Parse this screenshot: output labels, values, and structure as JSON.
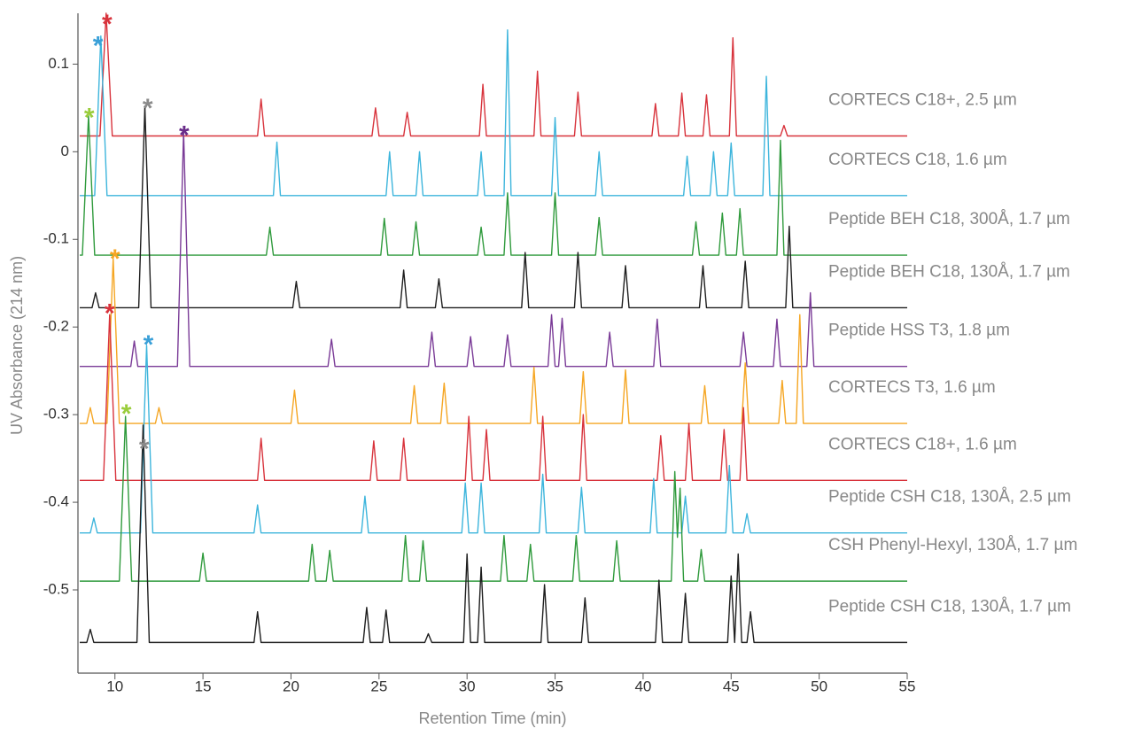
{
  "chart_data": {
    "type": "line",
    "x_label": "Retention Time (min)",
    "y_label": "UV Absorbance (214 nm)",
    "xlim": [
      7.9,
      55
    ],
    "ylim": [
      -0.595,
      0.158
    ],
    "xticks": [
      10,
      15,
      20,
      25,
      30,
      35,
      40,
      45,
      50,
      55
    ],
    "yticks": [
      0.1,
      0,
      -0.1,
      -0.2,
      -0.3,
      -0.4,
      -0.5
    ],
    "series": [
      {
        "name": "CORTECS C18+, 2.5 µm",
        "color": "#d8333c",
        "x": [
          8,
          9.15,
          9.5,
          9.85,
          18.1,
          18.3,
          18.5,
          24.6,
          24.8,
          25,
          26.4,
          26.6,
          26.8,
          30.7,
          30.9,
          31.1,
          33.8,
          34,
          34.2,
          36.1,
          36.3,
          36.5,
          40.5,
          40.7,
          40.9,
          42,
          42.2,
          42.4,
          43.4,
          43.6,
          43.8,
          44.9,
          45.1,
          45.3,
          47.8,
          48,
          48.2,
          55
        ],
        "values": [
          0.018,
          0.018,
          0.158,
          0.018,
          0.018,
          0.06,
          0.018,
          0.018,
          0.05,
          0.018,
          0.018,
          0.045,
          0.018,
          0.018,
          0.077,
          0.018,
          0.018,
          0.092,
          0.018,
          0.018,
          0.068,
          0.018,
          0.018,
          0.055,
          0.018,
          0.018,
          0.067,
          0.018,
          0.018,
          0.065,
          0.018,
          0.018,
          0.13,
          0.018,
          0.018,
          0.03,
          0.018,
          0.018
        ]
      },
      {
        "name": "CORTECS C18, 1.6 µm",
        "color": "#3db5dc",
        "x": [
          8,
          8.85,
          9.2,
          9.55,
          19,
          19.2,
          19.4,
          25.4,
          25.6,
          25.8,
          27.1,
          27.3,
          27.5,
          30.6,
          30.8,
          31,
          32.1,
          32.3,
          32.5,
          34.8,
          35,
          35.2,
          37.3,
          37.5,
          37.7,
          42.3,
          42.5,
          42.7,
          43.8,
          44,
          44.2,
          44.8,
          45,
          45.2,
          46.8,
          47,
          47.2,
          55
        ],
        "values": [
          -0.05,
          -0.05,
          0.132,
          -0.05,
          -0.05,
          0.011,
          -0.05,
          -0.05,
          0,
          -0.05,
          -0.05,
          0,
          -0.05,
          -0.05,
          0,
          -0.05,
          -0.05,
          0.139,
          -0.05,
          -0.05,
          0.039,
          -0.05,
          -0.05,
          0,
          -0.05,
          -0.05,
          -0.005,
          -0.05,
          -0.05,
          0,
          -0.05,
          -0.05,
          0.01,
          -0.05,
          -0.05,
          0.086,
          -0.05,
          -0.05
        ]
      },
      {
        "name": "Peptide BEH C18, 300Å, 1.7 µm",
        "color": "#2f9a3c",
        "x": [
          8,
          8.15,
          8.5,
          8.85,
          18.6,
          18.8,
          19,
          25.1,
          25.3,
          25.5,
          26.9,
          27.1,
          27.3,
          30.6,
          30.8,
          31,
          32.1,
          32.3,
          32.5,
          34.8,
          35,
          35.2,
          37.3,
          37.5,
          37.7,
          42.8,
          43,
          43.2,
          44.3,
          44.5,
          44.7,
          45.3,
          45.5,
          45.7,
          47.6,
          47.8,
          48,
          55
        ],
        "values": [
          -0.118,
          -0.118,
          0.041,
          -0.118,
          -0.118,
          -0.086,
          -0.118,
          -0.118,
          -0.076,
          -0.118,
          -0.118,
          -0.08,
          -0.118,
          -0.118,
          -0.086,
          -0.118,
          -0.118,
          -0.047,
          -0.118,
          -0.118,
          -0.047,
          -0.118,
          -0.118,
          -0.075,
          -0.118,
          -0.118,
          -0.08,
          -0.118,
          -0.118,
          -0.07,
          -0.118,
          -0.118,
          -0.065,
          -0.118,
          -0.118,
          0.013,
          -0.118,
          -0.118
        ]
      },
      {
        "name": "Peptide BEH C18, 130Å, 1.7 µm",
        "color": "#1e1e1e",
        "x": [
          8,
          8.7,
          8.9,
          9.1,
          11.35,
          11.7,
          12.05,
          20.1,
          20.3,
          20.5,
          26.2,
          26.4,
          26.6,
          28.2,
          28.4,
          28.6,
          33.1,
          33.3,
          33.5,
          36.1,
          36.3,
          36.5,
          38.8,
          39,
          39.2,
          43.2,
          43.4,
          43.6,
          45.6,
          45.8,
          46,
          48.1,
          48.3,
          48.5,
          55
        ],
        "values": [
          -0.178,
          -0.178,
          -0.161,
          -0.178,
          -0.178,
          0.052,
          -0.178,
          -0.178,
          -0.148,
          -0.178,
          -0.178,
          -0.135,
          -0.178,
          -0.178,
          -0.145,
          -0.178,
          -0.178,
          -0.115,
          -0.178,
          -0.178,
          -0.115,
          -0.178,
          -0.178,
          -0.13,
          -0.178,
          -0.178,
          -0.13,
          -0.178,
          -0.178,
          -0.125,
          -0.178,
          -0.178,
          -0.085,
          -0.178,
          -0.178
        ]
      },
      {
        "name": "Peptide HSS T3, 1.8 µm",
        "color": "#7a3b97",
        "x": [
          8,
          10.9,
          11.1,
          11.3,
          13.55,
          13.9,
          14.25,
          22.1,
          22.3,
          22.5,
          27.8,
          28,
          28.2,
          30,
          30.2,
          30.4,
          32.1,
          32.3,
          32.5,
          34.6,
          34.8,
          35,
          35.2,
          35.4,
          35.6,
          37.9,
          38.1,
          38.3,
          40.6,
          40.8,
          41,
          45.5,
          45.7,
          45.9,
          47.4,
          47.6,
          47.8,
          49.3,
          49.5,
          49.7,
          55
        ],
        "values": [
          -0.245,
          -0.245,
          -0.216,
          -0.245,
          -0.245,
          0.023,
          -0.245,
          -0.245,
          -0.214,
          -0.245,
          -0.245,
          -0.206,
          -0.245,
          -0.245,
          -0.211,
          -0.245,
          -0.245,
          -0.209,
          -0.245,
          -0.245,
          -0.186,
          -0.245,
          -0.245,
          -0.19,
          -0.245,
          -0.245,
          -0.206,
          -0.245,
          -0.245,
          -0.191,
          -0.245,
          -0.245,
          -0.206,
          -0.245,
          -0.245,
          -0.191,
          -0.245,
          -0.245,
          -0.161,
          -0.245,
          -0.245
        ]
      },
      {
        "name": "CORTECS T3, 1.6 µm",
        "color": "#f5a623",
        "x": [
          8,
          8.4,
          8.6,
          8.8,
          9.55,
          9.9,
          10.25,
          12.3,
          12.5,
          12.7,
          20,
          20.2,
          20.4,
          26.8,
          27,
          27.2,
          28.5,
          28.7,
          28.9,
          33.6,
          33.8,
          34,
          36.4,
          36.6,
          36.8,
          38.8,
          39,
          39.2,
          43.3,
          43.5,
          43.7,
          45.6,
          45.8,
          46,
          47.7,
          47.9,
          48.1,
          48.7,
          48.9,
          49.1,
          55
        ],
        "values": [
          -0.31,
          -0.31,
          -0.292,
          -0.31,
          -0.31,
          -0.122,
          -0.31,
          -0.31,
          -0.292,
          -0.31,
          -0.31,
          -0.272,
          -0.31,
          -0.31,
          -0.267,
          -0.31,
          -0.31,
          -0.264,
          -0.31,
          -0.31,
          -0.246,
          -0.31,
          -0.31,
          -0.251,
          -0.31,
          -0.31,
          -0.249,
          -0.31,
          -0.31,
          -0.267,
          -0.31,
          -0.31,
          -0.241,
          -0.31,
          -0.31,
          -0.261,
          -0.31,
          -0.31,
          -0.186,
          -0.31,
          -0.31
        ]
      },
      {
        "name": "CORTECS C18+, 1.6 µm",
        "color": "#d8333c",
        "x": [
          8,
          9.35,
          9.7,
          10.05,
          18.1,
          18.3,
          18.5,
          24.5,
          24.7,
          24.9,
          26.2,
          26.4,
          26.6,
          29.9,
          30.1,
          30.3,
          30.9,
          31.1,
          31.3,
          34.1,
          34.3,
          34.5,
          36.4,
          36.6,
          36.8,
          40.8,
          41,
          41.2,
          42.4,
          42.6,
          42.8,
          44.4,
          44.6,
          44.8,
          45.5,
          45.7,
          45.9,
          55
        ],
        "values": [
          -0.375,
          -0.375,
          -0.186,
          -0.375,
          -0.375,
          -0.327,
          -0.375,
          -0.375,
          -0.33,
          -0.375,
          -0.375,
          -0.327,
          -0.375,
          -0.375,
          -0.302,
          -0.375,
          -0.375,
          -0.317,
          -0.375,
          -0.375,
          -0.302,
          -0.375,
          -0.375,
          -0.3,
          -0.375,
          -0.375,
          -0.324,
          -0.375,
          -0.375,
          -0.31,
          -0.375,
          -0.375,
          -0.317,
          -0.375,
          -0.375,
          -0.292,
          -0.375,
          -0.375
        ]
      },
      {
        "name": "Peptide CSH C18, 130Å, 2.5 µm",
        "color": "#3db5dc",
        "x": [
          8,
          8.6,
          8.8,
          9,
          11.45,
          11.8,
          12.15,
          17.9,
          18.1,
          18.3,
          24,
          24.2,
          24.4,
          29.7,
          29.9,
          30.1,
          30.6,
          30.8,
          31,
          34.1,
          34.3,
          34.5,
          36.3,
          36.5,
          36.7,
          40.4,
          40.6,
          40.8,
          42.2,
          42.4,
          42.6,
          44.7,
          44.9,
          45.1,
          45.7,
          45.9,
          46.1,
          55
        ],
        "values": [
          -0.435,
          -0.435,
          -0.418,
          -0.435,
          -0.435,
          -0.221,
          -0.435,
          -0.435,
          -0.403,
          -0.435,
          -0.435,
          -0.393,
          -0.435,
          -0.435,
          -0.378,
          -0.435,
          -0.435,
          -0.378,
          -0.435,
          -0.435,
          -0.368,
          -0.435,
          -0.435,
          -0.383,
          -0.435,
          -0.435,
          -0.373,
          -0.435,
          -0.435,
          -0.393,
          -0.435,
          -0.435,
          -0.358,
          -0.435,
          -0.435,
          -0.413,
          -0.435,
          -0.435
        ]
      },
      {
        "name": "CSH Phenyl-Hexyl, 130Å, 1.7 µm",
        "color": "#2f9a3c",
        "x": [
          8,
          10.25,
          10.6,
          10.95,
          14.8,
          15,
          15.2,
          21,
          21.2,
          21.4,
          22,
          22.2,
          22.4,
          26.3,
          26.5,
          26.7,
          27.3,
          27.5,
          27.7,
          31.9,
          32.1,
          32.3,
          33.4,
          33.6,
          33.8,
          36,
          36.2,
          36.4,
          38.3,
          38.5,
          38.7,
          41.6,
          41.8,
          41.95,
          42.1,
          42.3,
          43.1,
          43.3,
          43.5,
          55
        ],
        "values": [
          -0.49,
          -0.49,
          -0.302,
          -0.49,
          -0.49,
          -0.458,
          -0.49,
          -0.49,
          -0.448,
          -0.49,
          -0.49,
          -0.455,
          -0.49,
          -0.49,
          -0.438,
          -0.49,
          -0.49,
          -0.444,
          -0.49,
          -0.49,
          -0.438,
          -0.49,
          -0.49,
          -0.448,
          -0.49,
          -0.49,
          -0.438,
          -0.49,
          -0.49,
          -0.444,
          -0.49,
          -0.49,
          -0.365,
          -0.44,
          -0.384,
          -0.49,
          -0.49,
          -0.454,
          -0.49,
          -0.49
        ]
      },
      {
        "name": "Peptide CSH C18, 130Å, 1.7 µm",
        "color": "#1e1e1e",
        "x": [
          8,
          8.4,
          8.6,
          8.8,
          11.25,
          11.6,
          11.95,
          17.9,
          18.1,
          18.3,
          24.1,
          24.3,
          24.5,
          25.2,
          25.4,
          25.6,
          27.6,
          27.8,
          28,
          29.8,
          30,
          30.2,
          30.6,
          30.8,
          31,
          34.2,
          34.4,
          34.6,
          36.5,
          36.7,
          36.9,
          40.7,
          40.9,
          41.1,
          42.2,
          42.4,
          42.6,
          44.8,
          45,
          45.2,
          45.2,
          45.4,
          45.6,
          45.9,
          46.1,
          46.3,
          55
        ],
        "values": [
          -0.56,
          -0.56,
          -0.545,
          -0.56,
          -0.56,
          -0.312,
          -0.56,
          -0.56,
          -0.525,
          -0.56,
          -0.56,
          -0.52,
          -0.56,
          -0.56,
          -0.523,
          -0.56,
          -0.56,
          -0.55,
          -0.56,
          -0.56,
          -0.459,
          -0.56,
          -0.56,
          -0.474,
          -0.56,
          -0.56,
          -0.494,
          -0.56,
          -0.56,
          -0.509,
          -0.56,
          -0.56,
          -0.489,
          -0.56,
          -0.56,
          -0.504,
          -0.56,
          -0.56,
          -0.484,
          -0.56,
          -0.56,
          -0.459,
          -0.56,
          -0.56,
          -0.525,
          -0.56,
          -0.56
        ]
      }
    ],
    "annotations": [
      {
        "text": "*",
        "x": 9.55,
        "y": 0.153,
        "color": "#d8333c"
      },
      {
        "text": "*",
        "x": 9.04,
        "y": 0.128,
        "color": "#3aa0d8"
      },
      {
        "text": "*",
        "x": 8.54,
        "y": 0.046,
        "color": "#9acd3c"
      },
      {
        "text": "*",
        "x": 11.86,
        "y": 0.057,
        "color": "#8a8a8a"
      },
      {
        "text": "*",
        "x": 13.93,
        "y": 0.026,
        "color": "#6a2d8a"
      },
      {
        "text": "*",
        "x": 10.0,
        "y": -0.115,
        "color": "#f5a623"
      },
      {
        "text": "*",
        "x": 9.7,
        "y": -0.177,
        "color": "#d8333c"
      },
      {
        "text": "*",
        "x": 11.9,
        "y": -0.213,
        "color": "#3aa0d8"
      },
      {
        "text": "*",
        "x": 10.65,
        "y": -0.292,
        "color": "#9acd3c"
      },
      {
        "text": "*",
        "x": 11.66,
        "y": -0.332,
        "color": "#8a8a8a"
      }
    ]
  }
}
